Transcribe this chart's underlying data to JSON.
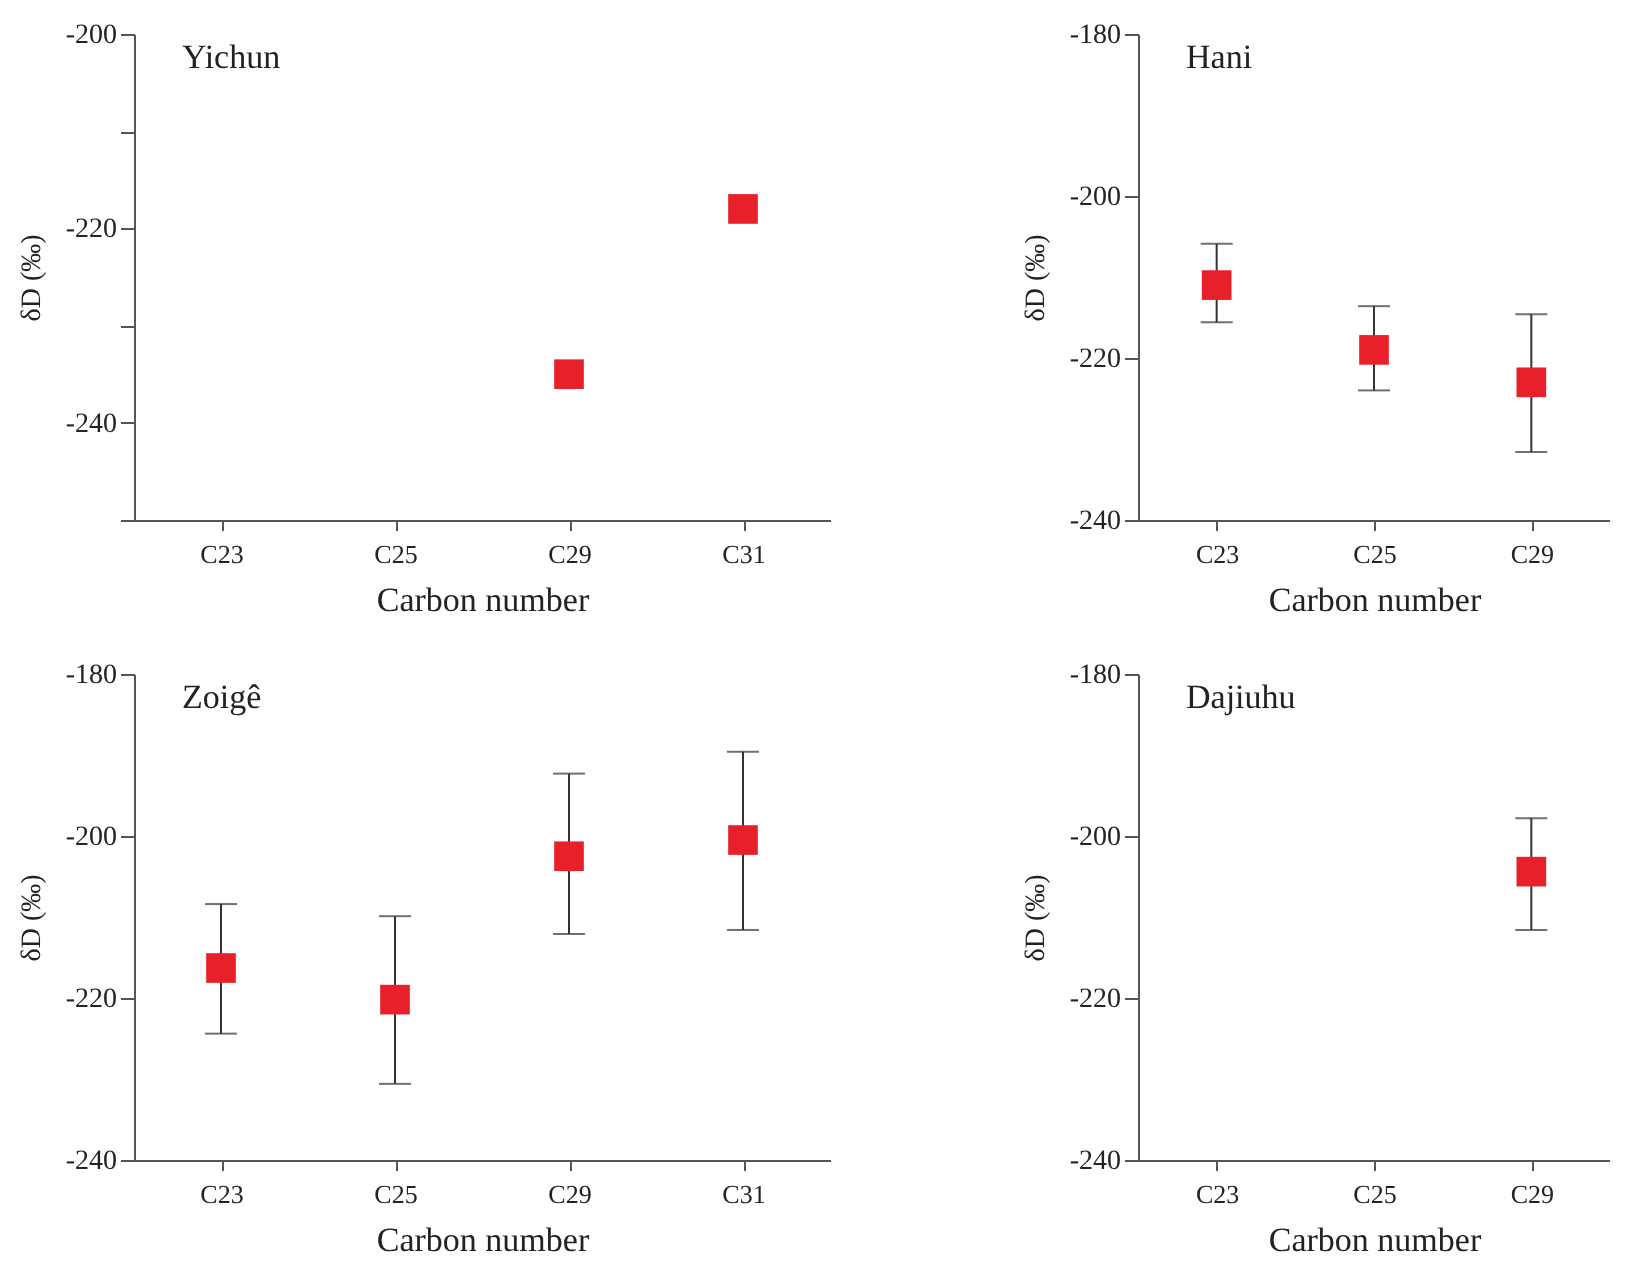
{
  "chart_data": [
    {
      "type": "scatter",
      "title": "Yichun",
      "xlabel": "Carbon number",
      "ylabel": "δD (‰)",
      "categories": [
        "C23",
        "C25",
        "C29",
        "C31"
      ],
      "marker": "square",
      "series": [
        {
          "color": "#e8202a",
          "values": [
            null,
            null,
            -235,
            -218
          ]
        }
      ],
      "ylim": [
        -250,
        -200
      ],
      "yticks": [
        -200,
        {
          "value": -210,
          "label": null
        },
        -220,
        {
          "value": -230,
          "label": null
        },
        -240,
        {
          "value": -250,
          "label": null
        }
      ]
    },
    {
      "type": "scatter",
      "title": "Hani",
      "xlabel": "Carbon number",
      "ylabel": "δD (‰)",
      "categories": [
        "C23",
        "C25",
        "C29"
      ],
      "marker": "square",
      "series": [
        {
          "color": "#e8202a",
          "values": [
            -211,
            -219,
            -223
          ],
          "errors": [
            [
              -215.6,
              -205.9
            ],
            [
              -224,
              -213.6
            ],
            [
              -231.6,
              -214.6
            ]
          ]
        }
      ],
      "ylim": [
        -240,
        -180
      ],
      "yticks": [
        -180,
        -200,
        -220,
        -240
      ]
    },
    {
      "type": "scatter",
      "title": "Zoigê",
      "xlabel": "Carbon number",
      "ylabel": "δD (‰)",
      "categories": [
        "C23",
        "C25",
        "C29",
        "C31"
      ],
      "marker": "square",
      "series": [
        {
          "color": "#e8202a",
          "values": [
            -216.3,
            -220.2,
            -202.5,
            -200.5
          ],
          "errors": [
            [
              -224.4,
              -208.4
            ],
            [
              -230.6,
              -209.9
            ],
            [
              -212.1,
              -192.3
            ],
            [
              -211.6,
              -189.6
            ]
          ]
        }
      ],
      "ylim": [
        -240,
        -180
      ],
      "yticks": [
        -180,
        -200,
        -220,
        -240
      ]
    },
    {
      "type": "scatter",
      "title": "Dajiuhu",
      "xlabel": "Carbon number",
      "ylabel": "δD (‰)",
      "categories": [
        "C23",
        "C25",
        "C29"
      ],
      "marker": "square",
      "series": [
        {
          "color": "#e8202a",
          "values": [
            null,
            null,
            -204.4
          ],
          "errors": [
            null,
            null,
            [
              -211.6,
              -197.8
            ]
          ]
        }
      ],
      "ylim": [
        -240,
        -180
      ],
      "yticks": [
        -180,
        -200,
        -220,
        -240
      ]
    }
  ]
}
